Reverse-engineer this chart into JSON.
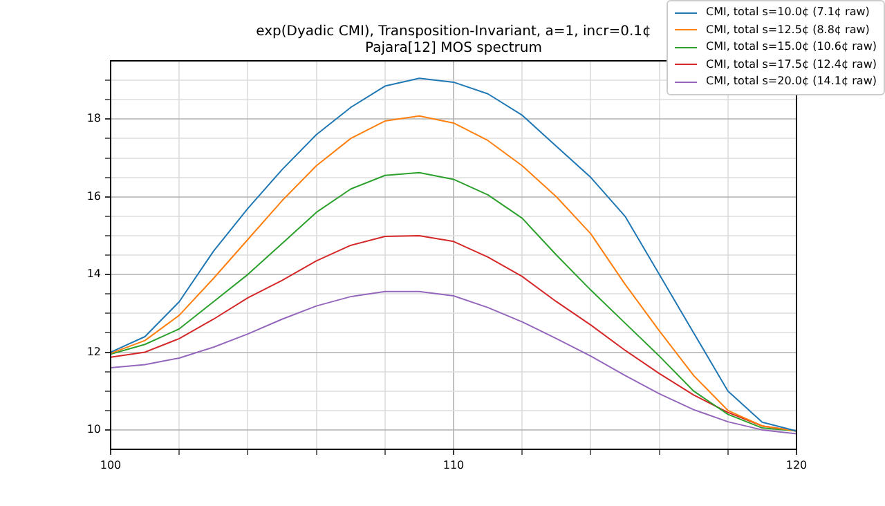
{
  "chart_data": {
    "type": "line",
    "title": "exp(Dyadic CMI), Transposition-Invariant, a=1, incr=0.1¢\nPajara[12] MOS spectrum",
    "x": [
      100,
      101,
      102,
      103,
      104,
      105,
      106,
      107,
      108,
      109,
      110,
      111,
      112,
      113,
      114,
      115,
      116,
      117,
      118,
      119,
      120
    ],
    "series": [
      {
        "name": "CMI, total s=10.0¢ (7.1¢ raw)",
        "color": "#1f77b4",
        "values": [
          12.0,
          12.4,
          13.3,
          14.6,
          15.7,
          16.7,
          17.6,
          18.3,
          18.85,
          19.05,
          18.95,
          18.65,
          18.1,
          17.3,
          16.5,
          15.5,
          14.0,
          12.5,
          11.0,
          10.2,
          9.97
        ]
      },
      {
        "name": "CMI, total s=12.5¢ (8.8¢ raw)",
        "color": "#ff7f0e",
        "values": [
          11.97,
          12.3,
          12.95,
          13.9,
          14.9,
          15.9,
          16.8,
          17.5,
          17.95,
          18.08,
          17.9,
          17.45,
          16.8,
          16.0,
          15.05,
          13.75,
          12.55,
          11.4,
          10.5,
          10.1,
          9.97
        ]
      },
      {
        "name": "CMI, total s=15.0¢ (10.6¢ raw)",
        "color": "#2ca02c",
        "values": [
          11.95,
          12.2,
          12.6,
          13.3,
          14.0,
          14.8,
          15.6,
          16.2,
          16.55,
          16.62,
          16.45,
          16.05,
          15.45,
          14.5,
          13.6,
          12.75,
          11.9,
          11.0,
          10.4,
          10.05,
          9.97
        ]
      },
      {
        "name": "CMI, total s=17.5¢ (12.4¢ raw)",
        "color": "#d62728",
        "values": [
          11.87,
          12.0,
          12.35,
          12.85,
          13.4,
          13.85,
          14.35,
          14.75,
          14.98,
          15.0,
          14.85,
          14.45,
          13.95,
          13.3,
          12.7,
          12.05,
          11.45,
          10.9,
          10.45,
          10.1,
          9.97
        ]
      },
      {
        "name": "CMI, total s=20.0¢ (14.1¢ raw)",
        "color": "#9467bd",
        "values": [
          11.6,
          11.68,
          11.85,
          12.13,
          12.47,
          12.85,
          13.19,
          13.43,
          13.56,
          13.56,
          13.45,
          13.15,
          12.78,
          12.35,
          11.9,
          11.4,
          10.93,
          10.52,
          10.21,
          10.0,
          9.9
        ]
      }
    ],
    "xlim": [
      100,
      120
    ],
    "xticks": [
      100,
      {
        "value": 102,
        "label": null
      },
      {
        "value": 104,
        "label": null
      },
      {
        "value": 106,
        "label": null
      },
      {
        "value": 108,
        "label": null
      },
      110,
      {
        "value": 112,
        "label": null
      },
      {
        "value": 114,
        "label": null
      },
      {
        "value": 116,
        "label": null
      },
      {
        "value": 118,
        "label": null
      },
      120
    ],
    "ylim": [
      9.5,
      19.5
    ],
    "yticks": [
      10,
      {
        "value": 10.5,
        "label": null
      },
      {
        "value": 11,
        "label": null
      },
      {
        "value": 11.5,
        "label": null
      },
      12,
      {
        "value": 12.5,
        "label": null
      },
      {
        "value": 13,
        "label": null
      },
      {
        "value": 13.5,
        "label": null
      },
      14,
      {
        "value": 14.5,
        "label": null
      },
      {
        "value": 15,
        "label": null
      },
      {
        "value": 15.5,
        "label": null
      },
      16,
      {
        "value": 16.5,
        "label": null
      },
      {
        "value": 17,
        "label": null
      },
      {
        "value": 17.5,
        "label": null
      },
      18,
      {
        "value": 18.5,
        "label": null
      },
      {
        "value": 19,
        "label": null
      }
    ],
    "grid": true,
    "legend": "top right",
    "marker": "none",
    "line_style": "solid"
  }
}
